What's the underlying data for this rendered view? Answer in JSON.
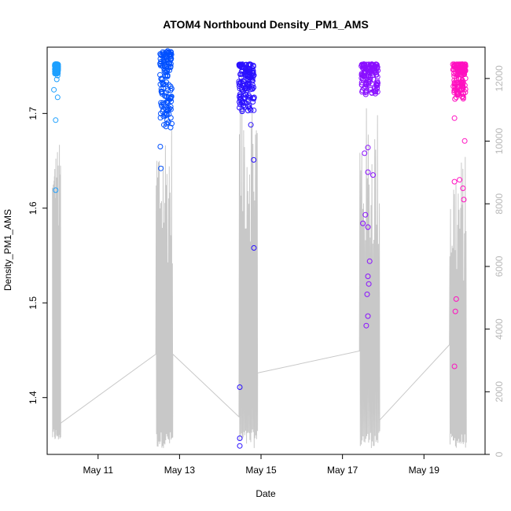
{
  "chart_data": {
    "type": "scatter",
    "title": "ATOM4 Northbound Density_PM1_AMS",
    "xlabel": "Date",
    "ylabel": "Density_PM1_AMS",
    "x_axis": {
      "type": "date",
      "range": [
        "2016-05-09 18:00",
        "2016-05-20 12:00"
      ],
      "ticks": [
        {
          "value": "2016-05-11",
          "label": "May 11"
        },
        {
          "value": "2016-05-13",
          "label": "May 13"
        },
        {
          "value": "2016-05-15",
          "label": "May 15"
        },
        {
          "value": "2016-05-17",
          "label": "May 17"
        },
        {
          "value": "2016-05-19",
          "label": "May 19"
        }
      ]
    },
    "y_axis": {
      "range": [
        1.34,
        1.77
      ],
      "ticks": [
        1.4,
        1.5,
        1.6,
        1.7
      ],
      "tick_labels": [
        "1.4",
        "1.5",
        "1.6",
        "1.7"
      ]
    },
    "y2_axis": {
      "range": [
        0,
        13000
      ],
      "ticks": [
        0,
        2000,
        4000,
        6000,
        8000,
        10000,
        12000
      ],
      "tick_labels": [
        "0",
        "2000",
        "4000",
        "6000",
        "8000",
        "10000",
        "12000"
      ],
      "color": "#c0c0c0"
    },
    "grid": false,
    "legend": "none",
    "series": [
      {
        "kind": "points",
        "marker": "open-circle",
        "color_gradient": [
          "#1ea0ff",
          "#0050ff",
          "#2010ff",
          "#8a10ff",
          "#ff10c0"
        ],
        "segments": [
          {
            "color": "#1ea0ff",
            "x_start": "2016-05-09 22:30",
            "x_end": "2016-05-10 00:30",
            "dense_band": [
              1.742,
              1.752
            ],
            "outliers": [
              {
                "x": "2016-05-09 22:00",
                "y": 1.725
              },
              {
                "x": "2016-05-09 23:00",
                "y": 1.693
              },
              {
                "x": "2016-05-09 23:00",
                "y": 1.619
              },
              {
                "x": "2016-05-10 00:10",
                "y": 1.717
              },
              {
                "x": "2016-05-09 23:40",
                "y": 1.736
              },
              {
                "x": "2016-05-10 00:10",
                "y": 1.74
              }
            ]
          },
          {
            "color": "#0050ff",
            "x_start": "2016-05-12 12:30",
            "x_end": "2016-05-12 19:30",
            "dense_band": [
              1.685,
              1.765
            ],
            "outliers": [
              {
                "x": "2016-05-12 13:00",
                "y": 1.642
              },
              {
                "x": "2016-05-12 12:40",
                "y": 1.665
              },
              {
                "x": "2016-05-12 17:00",
                "y": 1.766
              },
              {
                "x": "2016-05-12 14:30",
                "y": 1.762
              }
            ]
          },
          {
            "color": "#2a10ff",
            "x_start": "2016-05-14 11:00",
            "x_end": "2016-05-14 20:00",
            "dense_band": [
              1.7,
              1.752
            ],
            "outliers": [
              {
                "x": "2016-05-14 11:30",
                "y": 1.411
              },
              {
                "x": "2016-05-14 11:30",
                "y": 1.357
              },
              {
                "x": "2016-05-14 11:30",
                "y": 1.349
              },
              {
                "x": "2016-05-14 19:50",
                "y": 1.558
              },
              {
                "x": "2016-05-14 19:40",
                "y": 1.651
              },
              {
                "x": "2016-05-14 18:00",
                "y": 1.688
              }
            ]
          },
          {
            "color": "#8a10ff",
            "x_start": "2016-05-17 11:00",
            "x_end": "2016-05-17 21:00",
            "dense_band": [
              1.72,
              1.752
            ],
            "outliers": [
              {
                "x": "2016-05-17 13:00",
                "y": 1.658
              },
              {
                "x": "2016-05-17 15:00",
                "y": 1.664
              },
              {
                "x": "2016-05-17 15:00",
                "y": 1.638
              },
              {
                "x": "2016-05-17 18:00",
                "y": 1.635
              },
              {
                "x": "2016-05-17 12:00",
                "y": 1.584
              },
              {
                "x": "2016-05-17 13:30",
                "y": 1.593
              },
              {
                "x": "2016-05-17 15:00",
                "y": 1.58
              },
              {
                "x": "2016-05-17 16:00",
                "y": 1.544
              },
              {
                "x": "2016-05-17 15:00",
                "y": 1.528
              },
              {
                "x": "2016-05-17 15:30",
                "y": 1.52
              },
              {
                "x": "2016-05-17 14:30",
                "y": 1.509
              },
              {
                "x": "2016-05-17 15:00",
                "y": 1.486
              },
              {
                "x": "2016-05-17 14:00",
                "y": 1.476
              }
            ]
          },
          {
            "color": "#ff10c0",
            "x_start": "2016-05-19 17:00",
            "x_end": "2016-05-20 00:30",
            "dense_band": [
              1.715,
              1.752
            ],
            "outliers": [
              {
                "x": "2016-05-19 18:00",
                "y": 1.695
              },
              {
                "x": "2016-05-20 00:00",
                "y": 1.671
              },
              {
                "x": "2016-05-19 18:00",
                "y": 1.628
              },
              {
                "x": "2016-05-19 21:00",
                "y": 1.63
              },
              {
                "x": "2016-05-19 23:00",
                "y": 1.621
              },
              {
                "x": "2016-05-19 23:30",
                "y": 1.609
              },
              {
                "x": "2016-05-19 19:00",
                "y": 1.504
              },
              {
                "x": "2016-05-19 18:30",
                "y": 1.491
              },
              {
                "x": "2016-05-19 18:00",
                "y": 1.433
              }
            ]
          }
        ]
      },
      {
        "kind": "line",
        "axis": "right",
        "color": "#c8c8c8",
        "segments": [
          {
            "x_start": "2016-05-09 21:00",
            "x_end": "2016-05-10 02:00",
            "low": 400,
            "high": 10000,
            "connect_end": 1000
          },
          {
            "x_start": "2016-05-12 10:00",
            "x_end": "2016-05-12 20:00",
            "low": 200,
            "high": 10800,
            "connect_start": 3200,
            "connect_end": 3200
          },
          {
            "x_start": "2016-05-14 11:00",
            "x_end": "2016-05-14 22:00",
            "low": 200,
            "high": 12100,
            "connect_start": 1200,
            "connect_end": 2600
          },
          {
            "x_start": "2016-05-17 10:00",
            "x_end": "2016-05-17 22:00",
            "low": 200,
            "high": 11200,
            "connect_start": 3300,
            "connect_end": 1100
          },
          {
            "x_start": "2016-05-19 15:00",
            "x_end": "2016-05-20 01:00",
            "low": 200,
            "high": 9600,
            "connect_start": 3500
          }
        ]
      }
    ]
  }
}
